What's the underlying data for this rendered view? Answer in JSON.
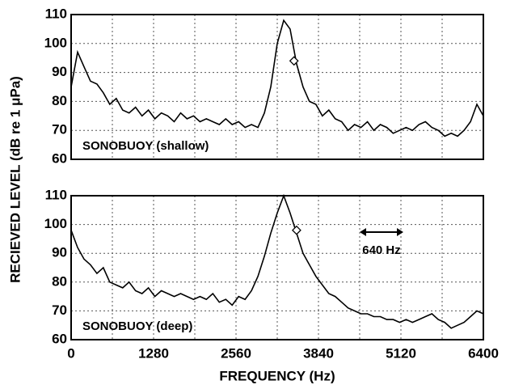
{
  "chart_data": [
    {
      "type": "line",
      "ylabel": "RECIEVED LEVEL (dB re 1 μPa)",
      "annotation": "SONOBUOY (shallow)",
      "xlim": [
        0,
        6400
      ],
      "xticks": [
        0,
        1280,
        2560,
        3840,
        5120,
        6400
      ],
      "xminorticks": [
        640,
        1920,
        3200,
        4480,
        5760
      ],
      "ylim": [
        60,
        110
      ],
      "yticks": [
        60,
        70,
        80,
        90,
        100,
        110
      ],
      "grid": true,
      "color": "#000000",
      "x": [
        0,
        100,
        200,
        300,
        400,
        500,
        600,
        700,
        800,
        900,
        1000,
        1100,
        1200,
        1300,
        1400,
        1500,
        1600,
        1700,
        1800,
        1900,
        2000,
        2100,
        2200,
        2300,
        2400,
        2500,
        2600,
        2700,
        2800,
        2900,
        3000,
        3100,
        3200,
        3300,
        3400,
        3500,
        3600,
        3700,
        3800,
        3900,
        4000,
        4100,
        4200,
        4300,
        4400,
        4500,
        4600,
        4700,
        4800,
        4900,
        5000,
        5100,
        5200,
        5300,
        5400,
        5500,
        5600,
        5700,
        5800,
        5900,
        6000,
        6100,
        6200,
        6300,
        6400
      ],
      "values": [
        85,
        97,
        92,
        87,
        86,
        83,
        79,
        81,
        77,
        76,
        78,
        75,
        77,
        74,
        76,
        75,
        73,
        76,
        74,
        75,
        73,
        74,
        73,
        72,
        74,
        72,
        73,
        71,
        72,
        71,
        76,
        85,
        100,
        108,
        105,
        93,
        85,
        80,
        79,
        75,
        77,
        74,
        73,
        70,
        72,
        71,
        73,
        70,
        72,
        71,
        69,
        70,
        71,
        70,
        72,
        73,
        71,
        70,
        68,
        69,
        68,
        70,
        73,
        79,
        75
      ],
      "marker": {
        "x": 3460,
        "y": 94
      }
    },
    {
      "type": "line",
      "xlabel": "FREQUENCY (Hz)",
      "annotation": "SONOBUOY (deep)",
      "span_label": "640 Hz",
      "xlim": [
        0,
        6400
      ],
      "xticks": [
        0,
        1280,
        2560,
        3840,
        5120,
        6400
      ],
      "xminorticks": [
        640,
        1920,
        3200,
        4480,
        5760
      ],
      "ylim": [
        60,
        110
      ],
      "yticks": [
        60,
        70,
        80,
        90,
        100,
        110
      ],
      "grid": true,
      "color": "#000000",
      "x": [
        0,
        100,
        200,
        300,
        400,
        500,
        600,
        700,
        800,
        900,
        1000,
        1100,
        1200,
        1300,
        1400,
        1500,
        1600,
        1700,
        1800,
        1900,
        2000,
        2100,
        2200,
        2300,
        2400,
        2500,
        2600,
        2700,
        2800,
        2900,
        3000,
        3100,
        3200,
        3300,
        3400,
        3500,
        3600,
        3700,
        3800,
        3900,
        4000,
        4100,
        4200,
        4300,
        4400,
        4500,
        4600,
        4700,
        4800,
        4900,
        5000,
        5100,
        5200,
        5300,
        5400,
        5500,
        5600,
        5700,
        5800,
        5900,
        6000,
        6100,
        6200,
        6300,
        6400
      ],
      "values": [
        98,
        92,
        88,
        86,
        83,
        85,
        80,
        79,
        78,
        80,
        77,
        76,
        78,
        75,
        77,
        76,
        75,
        76,
        75,
        74,
        75,
        74,
        76,
        73,
        74,
        72,
        75,
        74,
        77,
        82,
        89,
        97,
        104,
        110,
        104,
        97,
        90,
        86,
        82,
        79,
        76,
        75,
        73,
        71,
        70,
        69,
        69,
        68,
        68,
        67,
        67,
        66,
        67,
        66,
        67,
        68,
        69,
        67,
        66,
        64,
        65,
        66,
        68,
        70,
        69
      ],
      "marker": {
        "x": 3500,
        "y": 98
      }
    }
  ]
}
